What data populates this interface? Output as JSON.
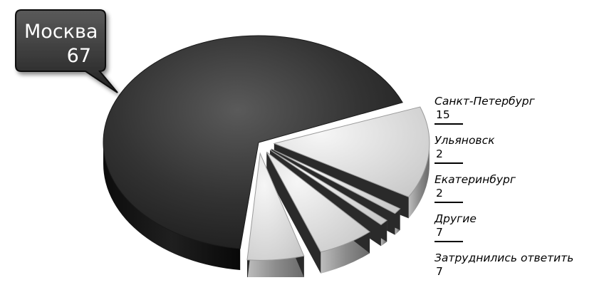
{
  "chart_data": {
    "type": "pie",
    "title": "",
    "slices": [
      {
        "label": "Москва",
        "value": 67,
        "color": "#2e2e2e"
      },
      {
        "label": "Санкт-Петербург",
        "value": 15,
        "color": "#e0e0e0"
      },
      {
        "label": "Ульяновск",
        "value": 2,
        "color": "#e0e0e0"
      },
      {
        "label": "Екатеринбург",
        "value": 2,
        "color": "#e0e0e0"
      },
      {
        "label": "Другие",
        "value": 7,
        "color": "#e0e0e0"
      },
      {
        "label": "Затруднились ответить",
        "value": 7,
        "color": "#e0e0e0"
      }
    ],
    "callout": {
      "label": "Москва",
      "value": "67"
    },
    "legend": [
      {
        "label": "Санкт-Петербург",
        "value": "15"
      },
      {
        "label": "Ульяновск",
        "value": "2"
      },
      {
        "label": "Екатеринбург",
        "value": "2"
      },
      {
        "label": "Другие",
        "value": "7"
      },
      {
        "label": "Затруднились ответить",
        "value": "7"
      }
    ],
    "style": "3d-exploded",
    "legend_placement": "right"
  }
}
